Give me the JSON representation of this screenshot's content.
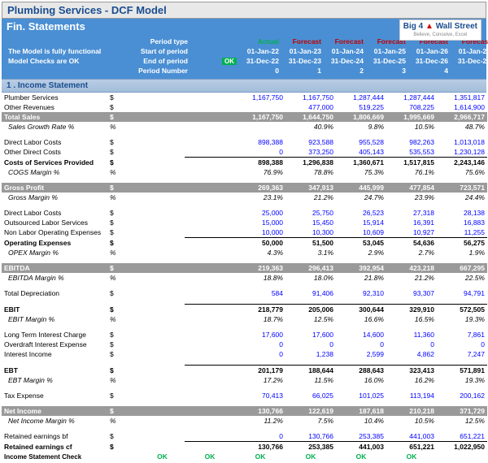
{
  "title": "Plumbing Services - DCF Model",
  "subtitle": "Fin. Statements",
  "logo": {
    "line1": "Big 4",
    "line2": "Wall Street",
    "tag": "Believe, Conceive, Excel"
  },
  "notes": {
    "line1": "The Model is fully functional",
    "line2": "Model Checks are OK"
  },
  "period_labels": {
    "type": "Period type",
    "start": "Start of period",
    "end": "End of period",
    "num": "Period Number"
  },
  "cols": {
    "currency": "$",
    "pct": "%",
    "types": [
      "Actual",
      "Forecast",
      "Forecast",
      "Forecast",
      "Forecast",
      "Forecast"
    ],
    "starts": [
      "01-Jan-22",
      "01-Jan-23",
      "01-Jan-24",
      "01-Jan-25",
      "01-Jan-26",
      "01-Jan-27"
    ],
    "ends": [
      "31-Dec-22",
      "31-Dec-23",
      "31-Dec-24",
      "31-Dec-25",
      "31-Dec-26",
      "31-Dec-27"
    ],
    "nums": [
      "0",
      "1",
      "2",
      "3",
      "4",
      "5"
    ],
    "ok": "OK"
  },
  "section1": "1 . Income Statement",
  "rows": [
    {
      "label": "Plumber Services",
      "unit": "$",
      "vals": [
        "",
        "1,167,750",
        "1,167,750",
        "1,287,444",
        "1,287,444",
        "1,351,817"
      ],
      "blue": true
    },
    {
      "label": "Other Revenues",
      "unit": "$",
      "vals": [
        "",
        "",
        "477,000",
        "519,225",
        "708,225",
        "1,614,900"
      ],
      "blue": true
    },
    {
      "label": "Total Sales",
      "unit": "$",
      "vals": [
        "",
        "1,167,750",
        "1,644,750",
        "1,806,669",
        "1,995,669",
        "2,966,717"
      ],
      "grey": true
    },
    {
      "label": "Sales Growth Rate %",
      "unit": "%",
      "vals": [
        "",
        "",
        "40.9%",
        "9.8%",
        "10.5%",
        "48.7%"
      ],
      "italic": true
    },
    {
      "spacer": true
    },
    {
      "label": "Direct Labor Costs",
      "unit": "$",
      "vals": [
        "",
        "898,388",
        "923,588",
        "955,528",
        "982,263",
        "1,013,018"
      ],
      "blue": true
    },
    {
      "label": "Other Direct Costs",
      "unit": "$",
      "vals": [
        "",
        "0",
        "373,250",
        "405,143",
        "535,553",
        "1,230,128"
      ],
      "blue": true
    },
    {
      "label": "Costs of Services Provided",
      "unit": "$",
      "vals": [
        "",
        "898,388",
        "1,296,838",
        "1,360,671",
        "1,517,815",
        "2,243,146"
      ],
      "bold": true,
      "bt": true
    },
    {
      "label": "COGS Margin %",
      "unit": "%",
      "vals": [
        "",
        "76.9%",
        "78.8%",
        "75.3%",
        "76.1%",
        "75.6%"
      ],
      "italic": true
    },
    {
      "spacer": true
    },
    {
      "label": "Gross Profit",
      "unit": "$",
      "vals": [
        "",
        "269,363",
        "347,913",
        "445,999",
        "477,854",
        "723,571"
      ],
      "grey": true
    },
    {
      "label": "Gross Margin %",
      "unit": "%",
      "vals": [
        "",
        "23.1%",
        "21.2%",
        "24.7%",
        "23.9%",
        "24.4%"
      ],
      "italic": true
    },
    {
      "spacer": true
    },
    {
      "label": "Direct Labor Costs",
      "unit": "$",
      "vals": [
        "",
        "25,000",
        "25,750",
        "26,523",
        "27,318",
        "28,138"
      ],
      "blue": true
    },
    {
      "label": "Outsourced Labor Services",
      "unit": "$",
      "vals": [
        "",
        "15,000",
        "15,450",
        "15,914",
        "16,391",
        "16,883"
      ],
      "blue": true
    },
    {
      "label": "Non Labor Operating Expenses",
      "unit": "$",
      "vals": [
        "",
        "10,000",
        "10,300",
        "10,609",
        "10,927",
        "11,255"
      ],
      "blue": true
    },
    {
      "label": "Operating Expenses",
      "unit": "$",
      "vals": [
        "",
        "50,000",
        "51,500",
        "53,045",
        "54,636",
        "56,275"
      ],
      "bold": true,
      "bt": true
    },
    {
      "label": "OPEX Margin %",
      "unit": "%",
      "vals": [
        "",
        "4.3%",
        "3.1%",
        "2.9%",
        "2.7%",
        "1.9%"
      ],
      "italic": true
    },
    {
      "spacer": true
    },
    {
      "label": "EBITDA",
      "unit": "$",
      "vals": [
        "",
        "219,363",
        "296,413",
        "392,954",
        "423,218",
        "667,295"
      ],
      "grey": true
    },
    {
      "label": "EBITDA Margin %",
      "unit": "%",
      "vals": [
        "",
        "18.8%",
        "18.0%",
        "21.8%",
        "21.2%",
        "22.5%"
      ],
      "italic": true
    },
    {
      "spacer": true
    },
    {
      "label": "Total Depreciation",
      "unit": "$",
      "vals": [
        "",
        "584",
        "91,406",
        "92,310",
        "93,307",
        "94,791"
      ],
      "blue": true
    },
    {
      "spacer": true
    },
    {
      "label": "EBIT",
      "unit": "$",
      "vals": [
        "",
        "218,779",
        "205,006",
        "300,644",
        "329,910",
        "572,505"
      ],
      "bold": true,
      "bt": true
    },
    {
      "label": "EBIT Margin %",
      "unit": "%",
      "vals": [
        "",
        "18.7%",
        "12.5%",
        "16.6%",
        "16.5%",
        "19.3%"
      ],
      "italic": true
    },
    {
      "spacer": true
    },
    {
      "label": "Long Term Interest Charge",
      "unit": "$",
      "vals": [
        "",
        "17,600",
        "17,600",
        "14,600",
        "11,360",
        "7,861"
      ],
      "blue": true
    },
    {
      "label": "Overdraft Interest Expense",
      "unit": "$",
      "vals": [
        "",
        "0",
        "0",
        "0",
        "0",
        "0"
      ],
      "blue": true
    },
    {
      "label": "Interest Income",
      "unit": "$",
      "vals": [
        "",
        "0",
        "1,238",
        "2,599",
        "4,862",
        "7,247"
      ],
      "blue": true
    },
    {
      "spacer": true
    },
    {
      "label": "EBT",
      "unit": "$",
      "vals": [
        "",
        "201,179",
        "188,644",
        "288,643",
        "323,413",
        "571,891"
      ],
      "bold": true,
      "bt": true
    },
    {
      "label": "EBT Margin %",
      "unit": "%",
      "vals": [
        "",
        "17.2%",
        "11.5%",
        "16.0%",
        "16.2%",
        "19.3%"
      ],
      "italic": true
    },
    {
      "spacer": true
    },
    {
      "label": "Tax Expense",
      "unit": "$",
      "vals": [
        "",
        "70,413",
        "66,025",
        "101,025",
        "113,194",
        "200,162"
      ],
      "blue": true
    },
    {
      "spacer": true
    },
    {
      "label": "Net Income",
      "unit": "$",
      "vals": [
        "",
        "130,766",
        "122,619",
        "187,618",
        "210,218",
        "371,729"
      ],
      "grey": true
    },
    {
      "label": "Net Income Margin %",
      "unit": "%",
      "vals": [
        "",
        "11.2%",
        "7.5%",
        "10.4%",
        "10.5%",
        "12.5%"
      ],
      "italic": true
    },
    {
      "spacer": true
    },
    {
      "label": "Retained earnings bf",
      "unit": "$",
      "vals": [
        "",
        "0",
        "130,766",
        "253,385",
        "441,003",
        "651,221"
      ],
      "blue": true
    },
    {
      "label": "Retained earnings cf",
      "unit": "$",
      "vals": [
        "",
        "130,766",
        "253,385",
        "441,003",
        "651,221",
        "1,022,950"
      ],
      "bold": true,
      "bt": true
    }
  ],
  "check_row": {
    "label": "Income Statement Check",
    "vals": [
      "OK",
      "OK",
      "OK",
      "OK",
      "OK",
      "OK"
    ]
  },
  "colors": {
    "header_bg": "#4a8fd4",
    "title_color": "#1a4d8f",
    "grey_row": "#9a9a9a",
    "blue": "#0000ff",
    "actual": "#00b050",
    "forecast": "#c00000",
    "ok": "#00b050"
  }
}
